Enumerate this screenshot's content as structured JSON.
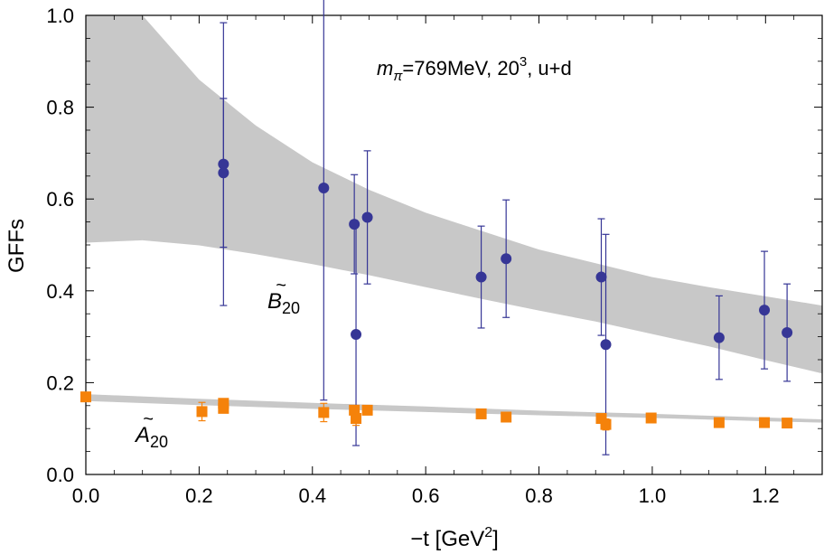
{
  "chart_data": {
    "type": "scatter",
    "xlabel": "−t [GeV",
    "xlabel_sup": "2",
    "xlabel_end": "]",
    "ylabel": "GFFs",
    "xlim": [
      0.0,
      1.3
    ],
    "ylim": [
      0.0,
      1.0
    ],
    "xticks": [
      "0.0",
      "0.2",
      "0.4",
      "0.6",
      "0.8",
      "1.0",
      "1.2"
    ],
    "yticks": [
      "0.0",
      "0.2",
      "0.4",
      "0.6",
      "0.8",
      "1.0"
    ],
    "annotation": {
      "m_base": "m",
      "m_sub": "π",
      "rest": "=769MeV, 20",
      "sup": "3",
      "tail": ", u+d"
    },
    "series": [
      {
        "name": "B20",
        "label_tilde": "~",
        "label_base": "B",
        "label_sub": "20",
        "marker": "circle",
        "color": "#363696",
        "points": [
          {
            "x": 0.243,
            "y": 0.657,
            "err": 0.162
          },
          {
            "x": 0.243,
            "y": 0.676,
            "err": 0.308
          },
          {
            "x": 0.42,
            "y": 0.624,
            "err": 0.462
          },
          {
            "x": 0.474,
            "y": 0.545,
            "err": 0.108
          },
          {
            "x": 0.477,
            "y": 0.305,
            "err": 0.242
          },
          {
            "x": 0.497,
            "y": 0.56,
            "err": 0.145
          },
          {
            "x": 0.698,
            "y": 0.43,
            "err": 0.111
          },
          {
            "x": 0.742,
            "y": 0.47,
            "err": 0.128
          },
          {
            "x": 0.91,
            "y": 0.43,
            "err": 0.127
          },
          {
            "x": 0.918,
            "y": 0.283,
            "err": 0.24
          },
          {
            "x": 1.118,
            "y": 0.298,
            "err": 0.091
          },
          {
            "x": 1.198,
            "y": 0.358,
            "err": 0.128
          },
          {
            "x": 1.238,
            "y": 0.309,
            "err": 0.106
          }
        ]
      },
      {
        "name": "A20",
        "label_tilde": "~",
        "label_base": "A",
        "label_sub": "20",
        "marker": "square",
        "color": "#F5820A",
        "points": [
          {
            "x": 0.0,
            "y": 0.169,
            "err": 0.005
          },
          {
            "x": 0.205,
            "y": 0.137,
            "err": 0.02
          },
          {
            "x": 0.243,
            "y": 0.144,
            "err": 0.008
          },
          {
            "x": 0.243,
            "y": 0.155,
            "err": 0.008
          },
          {
            "x": 0.42,
            "y": 0.135,
            "err": 0.02
          },
          {
            "x": 0.474,
            "y": 0.14,
            "err": 0.01
          },
          {
            "x": 0.477,
            "y": 0.122,
            "err": 0.015
          },
          {
            "x": 0.497,
            "y": 0.14,
            "err": 0.008
          },
          {
            "x": 0.698,
            "y": 0.132,
            "err": 0.006
          },
          {
            "x": 0.742,
            "y": 0.125,
            "err": 0.006
          },
          {
            "x": 0.91,
            "y": 0.122,
            "err": 0.006
          },
          {
            "x": 0.918,
            "y": 0.109,
            "err": 0.012
          },
          {
            "x": 0.998,
            "y": 0.123,
            "err": 0.005
          },
          {
            "x": 1.118,
            "y": 0.113,
            "err": 0.005
          },
          {
            "x": 1.198,
            "y": 0.113,
            "err": 0.008
          },
          {
            "x": 1.238,
            "y": 0.112,
            "err": 0.005
          }
        ]
      }
    ],
    "bands": [
      {
        "name": "B20 fit band",
        "color": "#c8c8c8",
        "x": [
          0.0,
          0.1,
          0.2,
          0.3,
          0.4,
          0.5,
          0.6,
          0.7,
          0.8,
          0.9,
          1.0,
          1.1,
          1.2,
          1.3
        ],
        "lower": [
          0.505,
          0.51,
          0.499,
          0.48,
          0.458,
          0.434,
          0.408,
          0.382,
          0.357,
          0.333,
          0.306,
          0.279,
          0.249,
          0.22
        ],
        "upper": [
          1.08,
          1.0,
          0.86,
          0.76,
          0.68,
          0.62,
          0.57,
          0.53,
          0.49,
          0.46,
          0.43,
          0.408,
          0.388,
          0.368
        ]
      },
      {
        "name": "A20 fit band",
        "color": "#c8c8c8",
        "x": [
          0.0,
          0.2,
          0.4,
          0.6,
          0.8,
          1.0,
          1.2,
          1.3
        ],
        "lower": [
          0.16,
          0.151,
          0.143,
          0.136,
          0.129,
          0.123,
          0.116,
          0.113
        ],
        "upper": [
          0.175,
          0.165,
          0.156,
          0.148,
          0.139,
          0.132,
          0.124,
          0.12
        ]
      }
    ]
  }
}
